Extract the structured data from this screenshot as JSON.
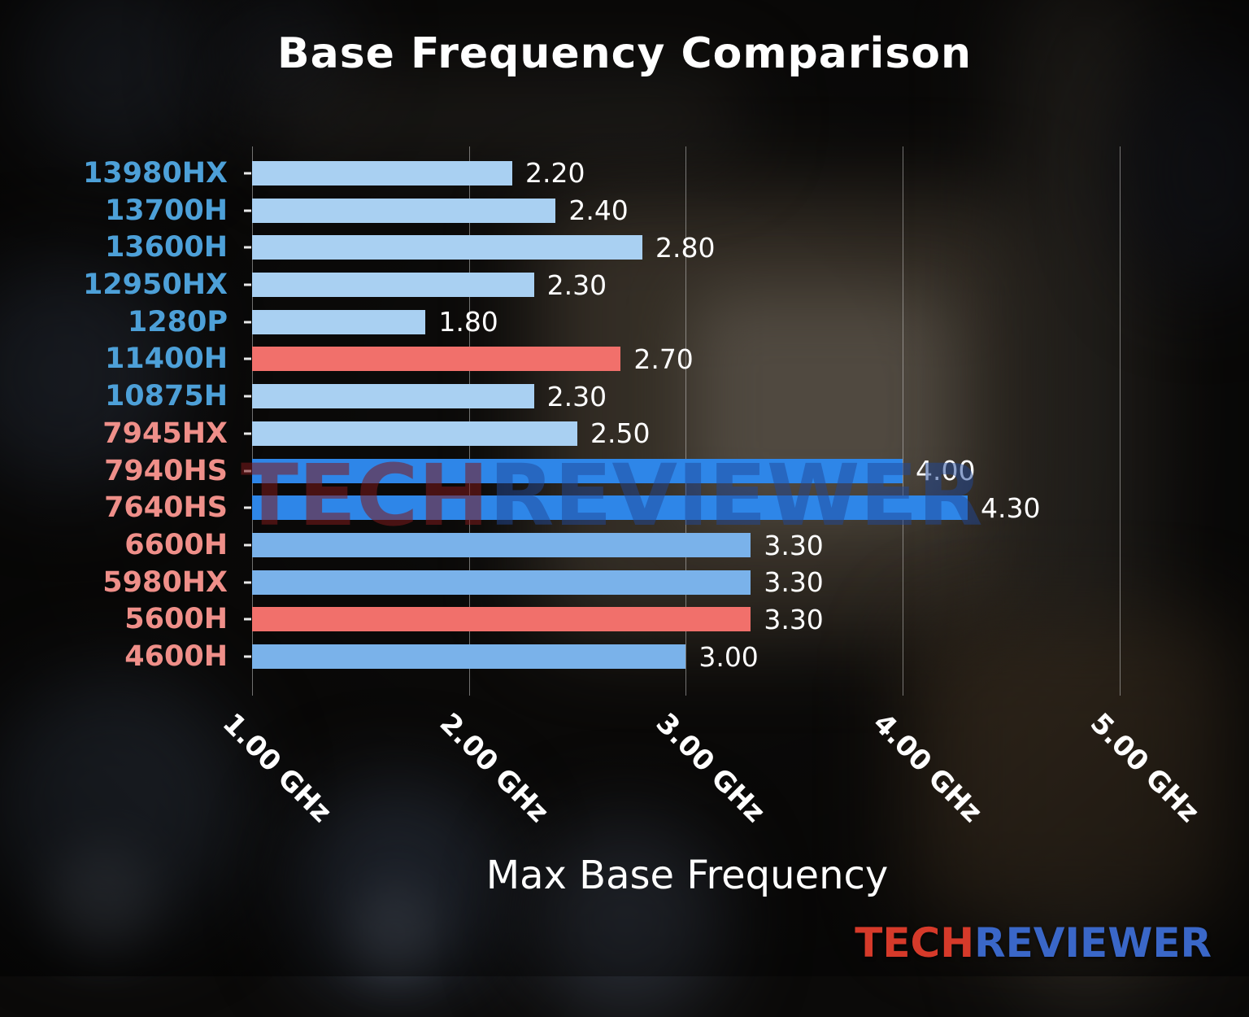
{
  "title": "Base Frequency Comparison",
  "xlabel": "Max Base Frequency",
  "watermark": {
    "tech": "TECH",
    "reviewer": "REVIEWER",
    "tech_color": "rgba(125,25,28,0.55)",
    "reviewer_color": "rgba(32,72,152,0.5)"
  },
  "logo": {
    "tech": "TECH",
    "reviewer": "REVIEWER",
    "tech_color": "#d63a2a",
    "reviewer_color": "#3a67c8"
  },
  "chart_data": {
    "type": "bar",
    "orientation": "horizontal",
    "title": "Base Frequency Comparison",
    "xlabel": "Max Base Frequency",
    "grid": true,
    "x_axis": {
      "start": 1.0,
      "end": 5.35,
      "unit": "GHz"
    },
    "xticks": [
      {
        "value": 1.0,
        "label": "1.00 GHz"
      },
      {
        "value": 2.0,
        "label": "2.00 GHz"
      },
      {
        "value": 3.0,
        "label": "3.00 GHz"
      },
      {
        "value": 4.0,
        "label": "4.00 GHz"
      },
      {
        "value": 5.0,
        "label": "5.00 GHz"
      }
    ],
    "palette": {
      "pale_blue_bar": "#a9d0f2",
      "medium_blue_bar": "#7ab2ea",
      "strong_blue_bar": "#2e86e8",
      "red_bar": "#f1706b",
      "intel_label": "#4da0d8",
      "amd_label": "#ef8f89",
      "value_text": "#ffffff",
      "gridline": "rgba(215,215,215,0.5)"
    },
    "rows": [
      {
        "label": "13980HX",
        "value": 2.2,
        "value_label": "2.20",
        "bar_color": "#a9d0f2",
        "label_color": "#4da0d8"
      },
      {
        "label": "13700H",
        "value": 2.4,
        "value_label": "2.40",
        "bar_color": "#a9d0f2",
        "label_color": "#4da0d8"
      },
      {
        "label": "13600H",
        "value": 2.8,
        "value_label": "2.80",
        "bar_color": "#a9d0f2",
        "label_color": "#4da0d8"
      },
      {
        "label": "12950HX",
        "value": 2.3,
        "value_label": "2.30",
        "bar_color": "#a9d0f2",
        "label_color": "#4da0d8"
      },
      {
        "label": "1280P",
        "value": 1.8,
        "value_label": "1.80",
        "bar_color": "#a9d0f2",
        "label_color": "#4da0d8"
      },
      {
        "label": "11400H",
        "value": 2.7,
        "value_label": "2.70",
        "bar_color": "#f1706b",
        "label_color": "#4da0d8"
      },
      {
        "label": "10875H",
        "value": 2.3,
        "value_label": "2.30",
        "bar_color": "#a9d0f2",
        "label_color": "#4da0d8"
      },
      {
        "label": "7945HX",
        "value": 2.5,
        "value_label": "2.50",
        "bar_color": "#a9d0f2",
        "label_color": "#ef8f89"
      },
      {
        "label": "7940HS",
        "value": 4.0,
        "value_label": "4.00",
        "bar_color": "#2e86e8",
        "label_color": "#ef8f89"
      },
      {
        "label": "7640HS",
        "value": 4.3,
        "value_label": "4.30",
        "bar_color": "#2e86e8",
        "label_color": "#ef8f89"
      },
      {
        "label": "6600H",
        "value": 3.3,
        "value_label": "3.30",
        "bar_color": "#7ab2ea",
        "label_color": "#ef8f89"
      },
      {
        "label": "5980HX",
        "value": 3.3,
        "value_label": "3.30",
        "bar_color": "#7ab2ea",
        "label_color": "#ef8f89"
      },
      {
        "label": "5600H",
        "value": 3.3,
        "value_label": "3.30",
        "bar_color": "#f1706b",
        "label_color": "#ef8f89"
      },
      {
        "label": "4600H",
        "value": 3.0,
        "value_label": "3.00",
        "bar_color": "#7ab2ea",
        "label_color": "#ef8f89"
      }
    ]
  }
}
